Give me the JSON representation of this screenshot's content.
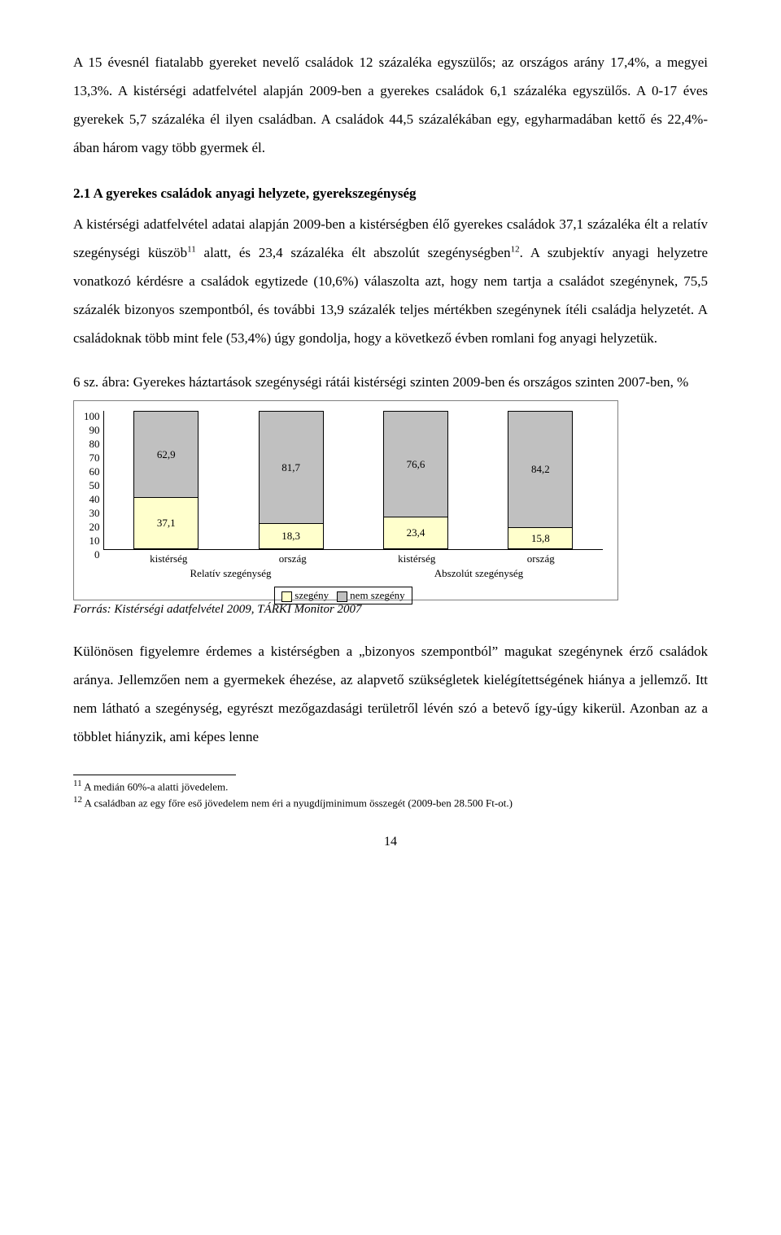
{
  "para1": "A 15 évesnél fiatalabb gyereket nevelő családok 12 százaléka egyszülős; az országos arány 17,4%, a megyei 13,3%. A kistérségi adatfelvétel alapján 2009-ben a gyerekes családok 6,1 százaléka egyszülős. A 0-17 éves gyerekek 5,7 százaléka él ilyen családban. A családok 44,5 százalékában egy, egyharmadában kettő és 22,4%-ában három vagy több gyermek él.",
  "heading": "2.1 A gyerekes családok anyagi helyzete, gyerekszegénység",
  "para2a": "A kistérségi adatfelvétel adatai alapján 2009-ben a kistérségben élő gyerekes családok 37,1 százaléka élt a relatív szegénységi küszöb",
  "sup11": "11",
  "para2b": " alatt, és 23,4 százaléka élt abszolút szegénységben",
  "sup12": "12",
  "para2c": ". A szubjektív anyagi helyzetre vonatkozó kérdésre a családok egytizede (10,6%) válaszolta azt, hogy nem tartja a családot szegénynek, 75,5 százalék bizonyos szempontból, és további 13,9 százalék teljes mértékben szegénynek ítéli családja helyzetét. A családoknak több mint fele (53,4%) úgy gondolja, hogy a következő évben romlani fog anyagi helyzetük.",
  "caption": "6 sz. ábra: Gyerekes háztartások szegénységi rátái kistérségi szinten 2009-ben és országos szinten 2007-ben, %",
  "chart": {
    "type": "stacked-bar",
    "ylim": [
      0,
      100
    ],
    "ytick_step": 10,
    "yticks": [
      "100",
      "90",
      "80",
      "70",
      "60",
      "50",
      "40",
      "30",
      "20",
      "10",
      "0"
    ],
    "categories": [
      "kistérség",
      "ország",
      "kistérség",
      "ország"
    ],
    "groups": [
      "Relatív szegénység",
      "Abszolút szegénység"
    ],
    "bars": [
      {
        "bottom": 37.1,
        "top": 62.9,
        "bottom_label": "37,1",
        "top_label": "62,9"
      },
      {
        "bottom": 18.3,
        "top": 81.7,
        "bottom_label": "18,3",
        "top_label": "81,7"
      },
      {
        "bottom": 23.4,
        "top": 76.6,
        "bottom_label": "23,4",
        "top_label": "76,6"
      },
      {
        "bottom": 15.8,
        "top": 84.2,
        "bottom_label": "15,8",
        "top_label": "84,2"
      }
    ],
    "legend": {
      "bottom": "szegény",
      "top": "nem szegény"
    },
    "colors": {
      "bottom": "#ffffcc",
      "top": "#c0c0c0",
      "border": "#000000",
      "bg": "#ffffff"
    }
  },
  "source": "Forrás: Kistérségi adatfelvétel 2009, TÁRKI Monitor 2007",
  "para3": "Különösen figyelemre érdemes a kistérségben a „bizonyos szempontból” magukat szegénynek érző családok aránya. Jellemzően nem a gyermekek éhezése, az alapvető szükségletek kielégítettségének hiánya a jellemző. Itt nem látható a szegénység, egyrészt mezőgazdasági területről lévén szó a betevő így-úgy kikerül. Azonban az a többlet hiányzik, ami képes lenne",
  "fn11_num": "11",
  "fn11": " A medián 60%-a alatti jövedelem.",
  "fn12_num": "12",
  "fn12": " A családban az egy főre eső jövedelem nem éri a nyugdíjminimum összegét (2009-ben 28.500 Ft-ot.)",
  "pagenum": "14"
}
